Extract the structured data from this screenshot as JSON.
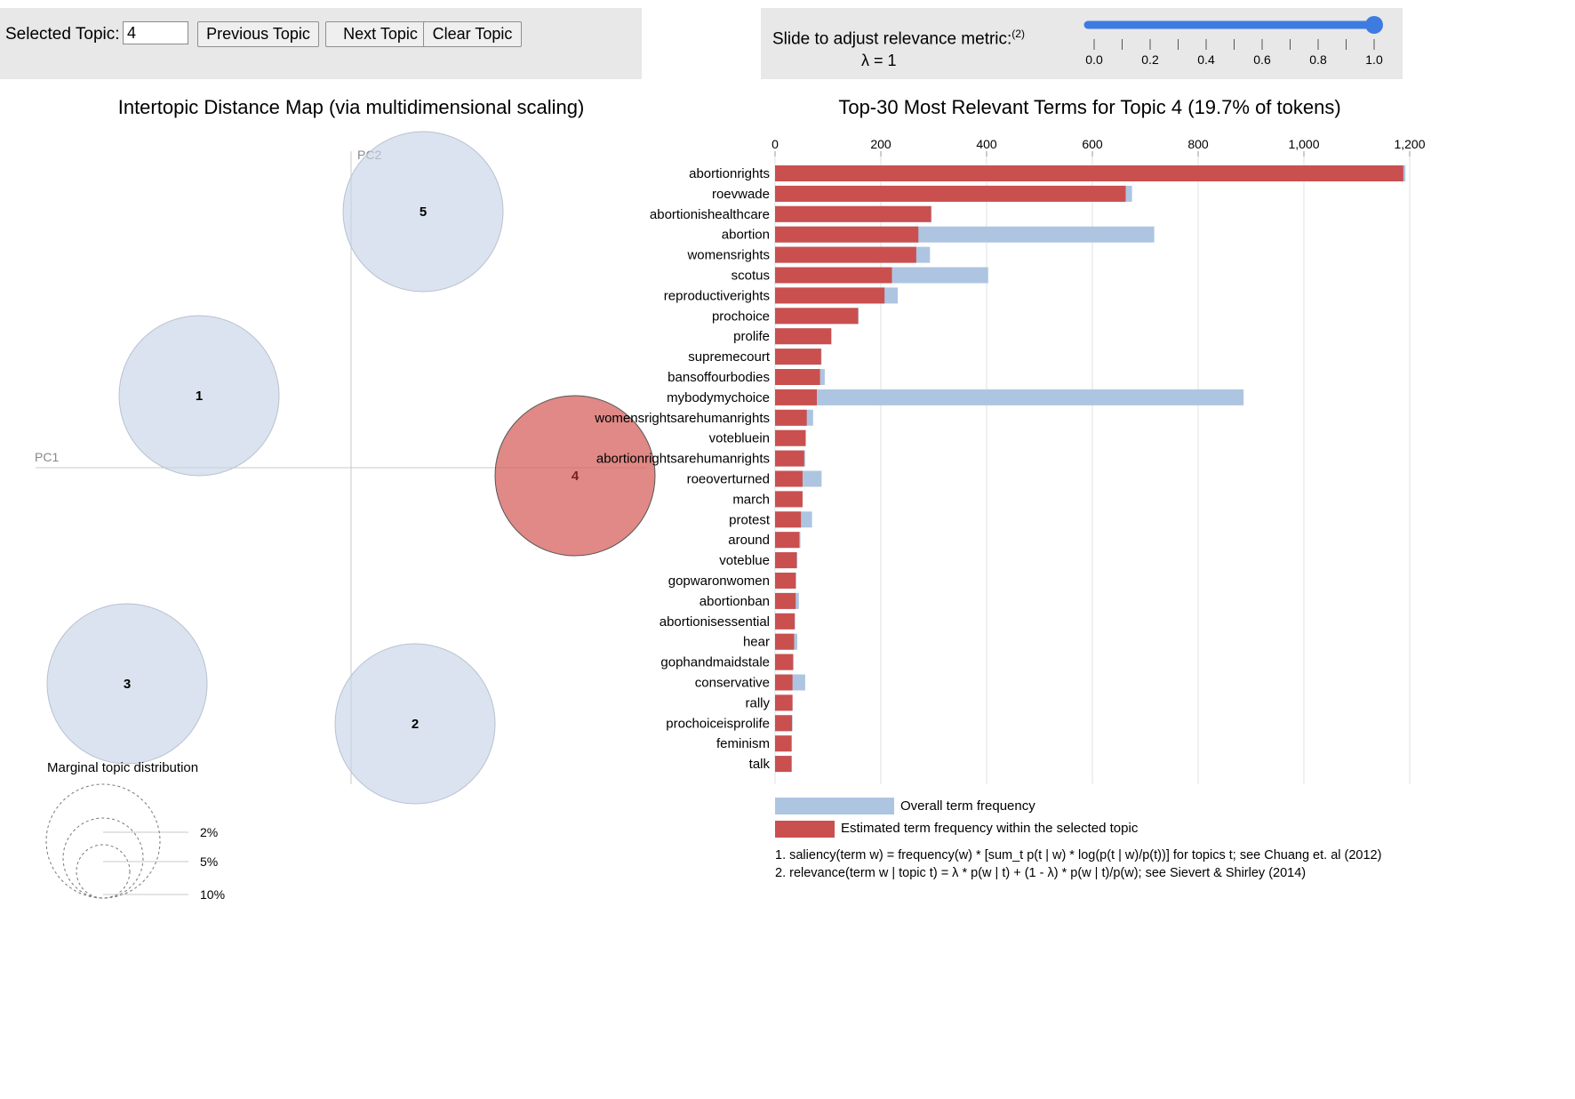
{
  "controls": {
    "topic_label": "Selected Topic:",
    "topic_value": "4",
    "prev_label": "Previous Topic",
    "next_label": "Next Topic",
    "clear_label": "Clear Topic"
  },
  "slider": {
    "label": "Slide to adjust relevance metric:",
    "footnote": "(2)",
    "lambda_text": "λ = 1",
    "value": 1.0,
    "min": 0.0,
    "max": 1.0,
    "ticks": [
      "0.0",
      "0.2",
      "0.4",
      "0.6",
      "0.8",
      "1.0"
    ],
    "accent": "#3e7be0"
  },
  "chart_data": [
    {
      "type": "scatter",
      "title": "Intertopic Distance Map (via multidimensional scaling)",
      "xlabel": "PC1",
      "ylabel": "PC2",
      "topics": [
        {
          "id": "1",
          "pc1": -0.19,
          "pc2": 0.09,
          "selected": false
        },
        {
          "id": "2",
          "pc1": 0.08,
          "pc2": -0.32,
          "selected": false
        },
        {
          "id": "3",
          "pc1": -0.28,
          "pc2": -0.27,
          "selected": false
        },
        {
          "id": "4",
          "pc1": 0.28,
          "pc2": -0.01,
          "selected": true
        },
        {
          "id": "5",
          "pc1": 0.09,
          "pc2": 0.32,
          "selected": false
        }
      ],
      "legend": {
        "title": "Marginal topic distribution",
        "entries": [
          "2%",
          "5%",
          "10%"
        ]
      },
      "colors": {
        "topic": "#c6d4e7",
        "selected": "#d6625e"
      }
    },
    {
      "type": "bar",
      "title": "Top-30 Most Relevant Terms for Topic 4 (19.7% of tokens)",
      "xlim": [
        0,
        1200
      ],
      "xticks": [
        "0",
        "200",
        "400",
        "600",
        "800",
        "1,000",
        "1,200"
      ],
      "terms": [
        "abortionrights",
        "roevwade",
        "abortionishealthcare",
        "abortion",
        "womensrights",
        "scotus",
        "reproductiverights",
        "prochoice",
        "prolife",
        "supremecourt",
        "bansoffourbodies",
        "mybodymychoice",
        "womensrightsarehumanrights",
        "votebluein",
        "abortionrightsarehumanrights",
        "roeoverturned",
        "march",
        "protest",
        "around",
        "voteblue",
        "gopwaronwomen",
        "abortionban",
        "abortionisessential",
        "hear",
        "gophandmaidstale",
        "conservative",
        "rally",
        "prochoiceisprolife",
        "feminism",
        "talk"
      ],
      "series": [
        {
          "name": "Overall term frequency",
          "color": "#aec5e1",
          "values": [
            1192,
            675,
            296,
            717,
            293,
            403,
            232,
            158,
            107,
            88,
            94,
            886,
            72,
            58,
            57,
            88,
            52,
            70,
            48,
            42,
            40,
            45,
            38,
            42,
            35,
            57,
            33,
            33,
            32,
            32
          ]
        },
        {
          "name": "Estimated term frequency within the selected topic",
          "color": "#c9504f",
          "values": [
            1188,
            663,
            295,
            271,
            267,
            221,
            207,
            157,
            106,
            87,
            85,
            79,
            60,
            58,
            55,
            52,
            52,
            49,
            46,
            41,
            39,
            39,
            37,
            36,
            34,
            33,
            33,
            32,
            31,
            31
          ]
        }
      ],
      "footnotes": [
        "1. saliency(term w) = frequency(w) * [sum_t p(t | w) * log(p(t | w)/p(t))] for topics t; see Chuang et. al (2012)",
        "2. relevance(term w | topic t) = λ * p(w | t) + (1 - λ) * p(w | t)/p(w); see Sievert & Shirley (2014)"
      ]
    }
  ]
}
